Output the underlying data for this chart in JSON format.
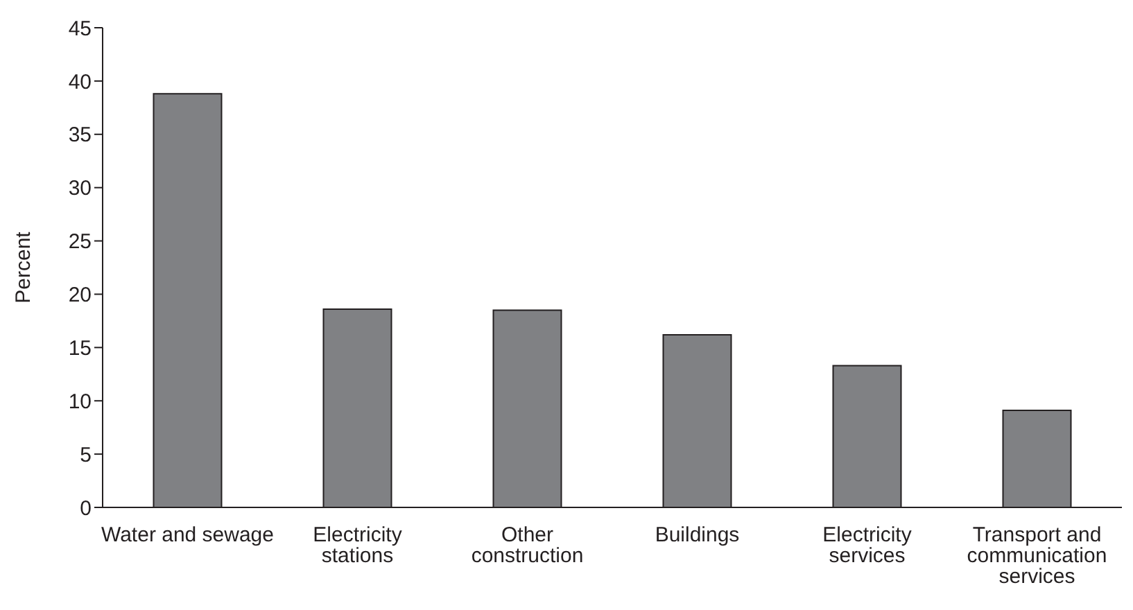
{
  "chart_data": {
    "type": "bar",
    "ylabel": "Percent",
    "categories": [
      "Water and sewage",
      "Electricity stations",
      "Other construction",
      "Buildings",
      "Electricity services",
      "Transport and communication services"
    ],
    "values": [
      38.8,
      18.6,
      18.5,
      16.2,
      13.3,
      9.1
    ],
    "color": "#808184",
    "ylim": [
      0,
      45
    ],
    "yticks": [
      0,
      5,
      10,
      15,
      20,
      25,
      30,
      35,
      40,
      45
    ],
    "grid": false,
    "legend": false
  }
}
